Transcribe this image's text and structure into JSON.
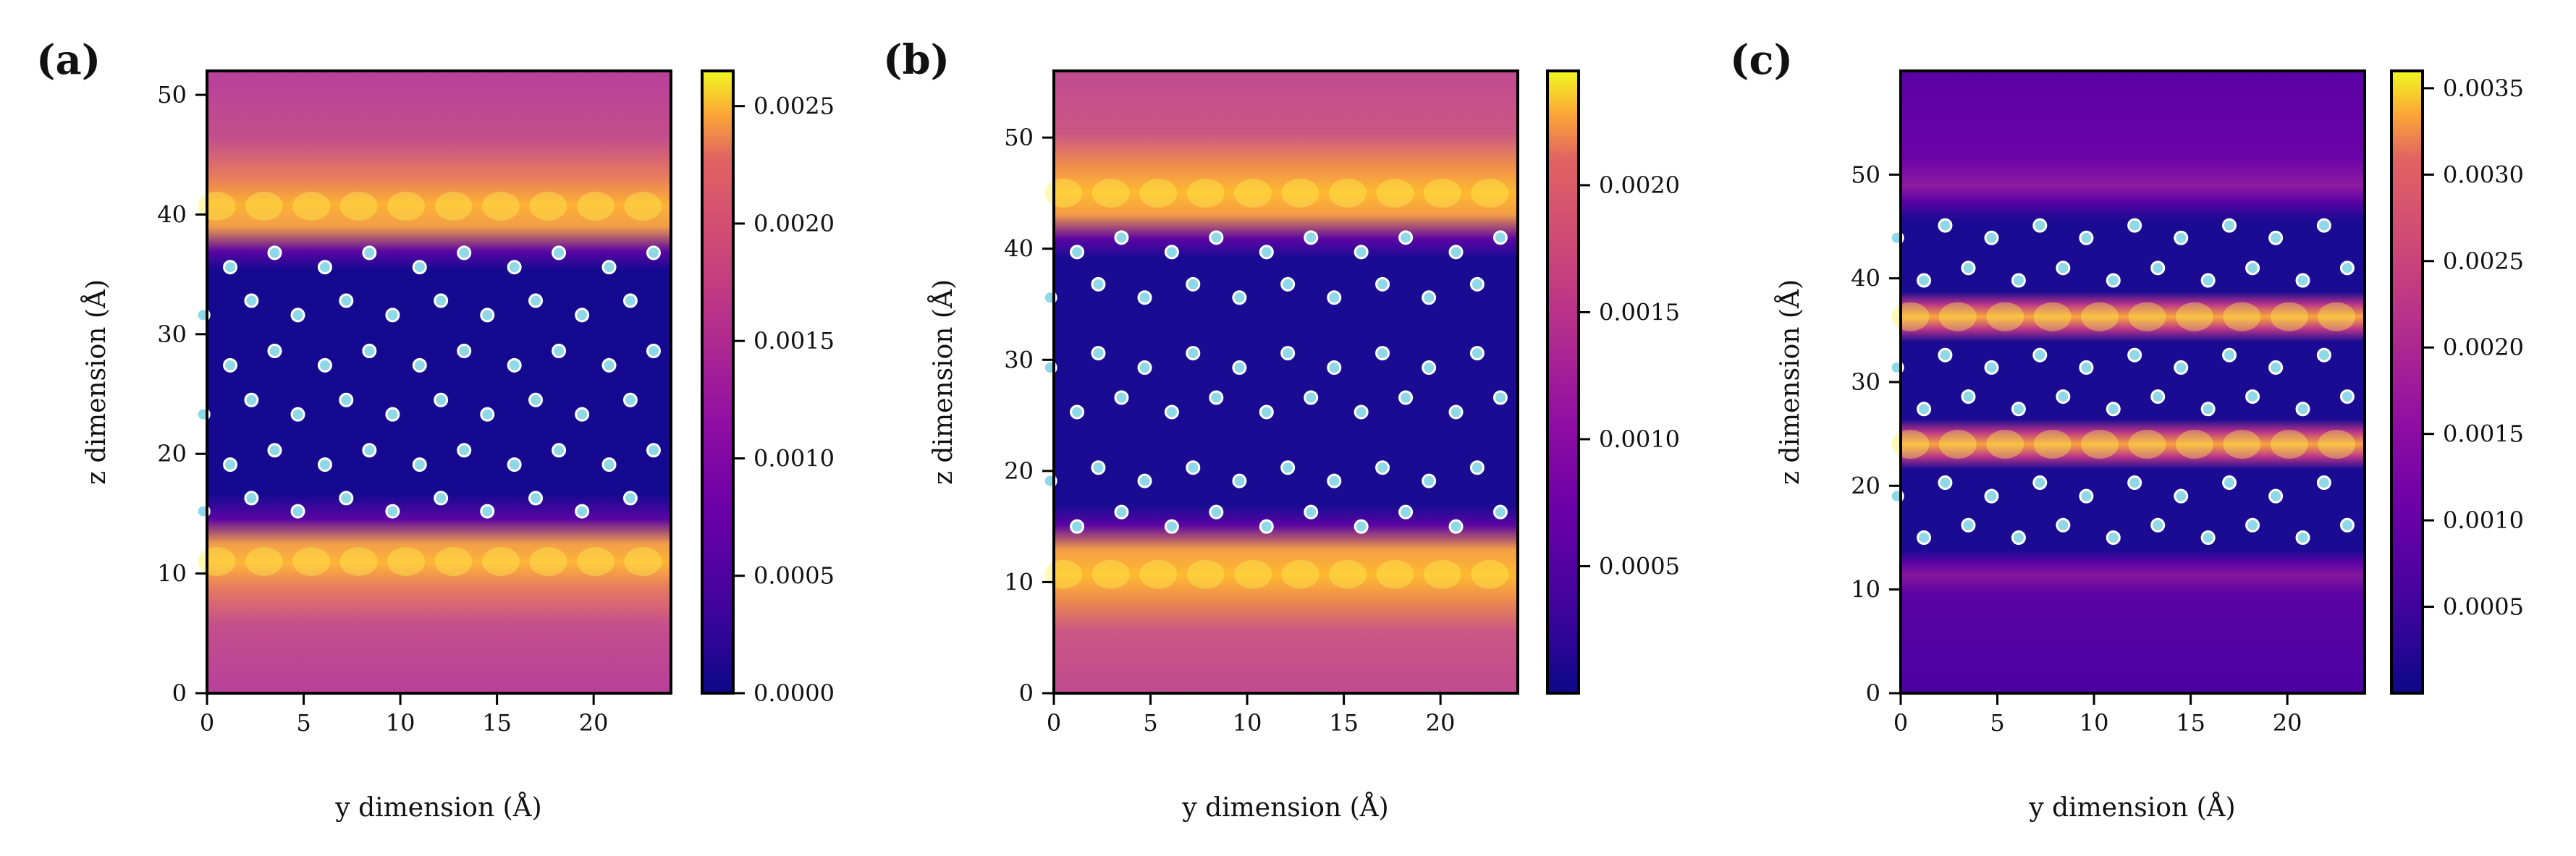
{
  "chart_data": [
    {
      "type": "heatmap",
      "panel_label": "(a)",
      "xlabel": "y dimension (Å)",
      "ylabel": "z dimension (Å)",
      "xlim": [
        0,
        24
      ],
      "ylim": [
        0,
        52
      ],
      "x_ticks": [
        0,
        5,
        10,
        15,
        20
      ],
      "y_ticks": [
        0,
        10,
        20,
        30,
        40,
        50
      ],
      "colorbar": {
        "min": 0.0,
        "max": 0.00265,
        "ticks": [
          0.0,
          0.0005,
          0.001,
          0.0015,
          0.002,
          0.0025
        ],
        "tick_labels": [
          "0.0000",
          "0.0005",
          "0.0010",
          "0.0015",
          "0.0020",
          "0.0025"
        ]
      },
      "bright_bands_z": [
        11,
        40.7
      ],
      "layer_z": [
        15.2,
        16.3,
        19.1,
        20.3,
        23.3,
        24.5,
        27.4,
        28.6,
        31.6,
        32.8,
        35.6,
        36.8
      ],
      "x_offsets": [
        -0.2,
        1.2,
        2.3,
        3.5
      ],
      "x_period": 4.9,
      "x_offset_cycle": [
        0,
        2,
        1,
        3,
        0,
        2,
        1,
        3,
        0,
        2,
        1,
        3
      ]
    },
    {
      "type": "heatmap",
      "panel_label": "(b)",
      "xlabel": "y dimension (Å)",
      "ylabel": "z dimension (Å)",
      "xlim": [
        0,
        24
      ],
      "ylim": [
        0,
        56
      ],
      "x_ticks": [
        0,
        5,
        10,
        15,
        20
      ],
      "y_ticks": [
        0,
        10,
        20,
        30,
        40,
        50
      ],
      "colorbar": {
        "min": 0.0,
        "max": 0.00245,
        "ticks": [
          0.0005,
          0.001,
          0.0015,
          0.002
        ],
        "tick_labels": [
          "0.0005",
          "0.0010",
          "0.0015",
          "0.0020"
        ]
      },
      "bright_bands_z": [
        10.7,
        45
      ],
      "layer_z": [
        15.0,
        16.3,
        19.1,
        20.3,
        25.3,
        26.6,
        29.3,
        30.6,
        35.6,
        36.8,
        39.7,
        41.0
      ],
      "x_offsets": [
        -0.2,
        1.2,
        2.3,
        3.5
      ],
      "x_period": 4.9,
      "x_offset_cycle": [
        1,
        3,
        0,
        2,
        1,
        3,
        0,
        2,
        0,
        2,
        1,
        3
      ]
    },
    {
      "type": "heatmap",
      "panel_label": "(c)",
      "xlabel": "y dimension (Å)",
      "ylabel": "z dimension (Å)",
      "xlim": [
        0,
        24
      ],
      "ylim": [
        0,
        60
      ],
      "x_ticks": [
        0,
        5,
        10,
        15,
        20
      ],
      "y_ticks": [
        0,
        10,
        20,
        30,
        40,
        50
      ],
      "colorbar": {
        "min": 0.0,
        "max": 0.0036,
        "ticks": [
          0.0005,
          0.001,
          0.0015,
          0.002,
          0.0025,
          0.003,
          0.0035
        ],
        "tick_labels": [
          "0.0005",
          "0.0010",
          "0.0015",
          "0.0020",
          "0.0025",
          "0.0030",
          "0.0035"
        ]
      },
      "bright_bands_z": [
        24,
        36.3
      ],
      "weak_bands_z": [
        11.5,
        48.8
      ],
      "layer_z": [
        15.0,
        16.2,
        19.0,
        20.3,
        27.4,
        28.6,
        31.4,
        32.6,
        39.8,
        41.0,
        43.9,
        45.1
      ],
      "x_offsets": [
        -0.2,
        1.2,
        2.3,
        3.5
      ],
      "x_period": 4.9,
      "x_offset_cycle": [
        1,
        3,
        0,
        2,
        1,
        3,
        0,
        2,
        1,
        3,
        0,
        2
      ]
    }
  ]
}
